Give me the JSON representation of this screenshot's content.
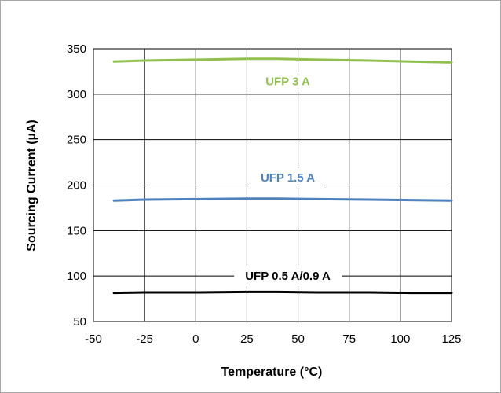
{
  "chart_data": {
    "type": "line",
    "title": "",
    "xlabel": "Temperature (°C)",
    "ylabel": "Sourcing Current (µA)",
    "xlim": [
      -50,
      125
    ],
    "ylim": [
      50,
      350
    ],
    "xticks": [
      -50,
      -25,
      0,
      25,
      50,
      75,
      100,
      125
    ],
    "yticks": [
      50,
      100,
      150,
      200,
      250,
      300,
      350
    ],
    "grid": true,
    "legend": "none (series labels drawn inline)",
    "series": [
      {
        "name": "UFP 3 A",
        "color": "#92c050",
        "label_at": [
          45,
          314
        ],
        "x": [
          -40,
          -25,
          0,
          25,
          40,
          60,
          85,
          105,
          125
        ],
        "y": [
          336,
          337,
          338,
          339,
          339,
          338,
          337,
          336,
          335
        ]
      },
      {
        "name": "UFP 1.5 A",
        "color": "#4f81bd",
        "label_at": [
          45,
          208
        ],
        "x": [
          -40,
          -25,
          0,
          25,
          40,
          60,
          85,
          105,
          125
        ],
        "y": [
          183,
          184,
          184.5,
          185,
          185,
          184.5,
          184,
          183.5,
          183
        ]
      },
      {
        "name": "UFP 0.5 A/0.9 A",
        "color": "#000000",
        "label_at": [
          45,
          100
        ],
        "x": [
          -40,
          -25,
          0,
          25,
          40,
          60,
          85,
          105,
          125
        ],
        "y": [
          81.5,
          82,
          82,
          82.5,
          82.5,
          82,
          82,
          81.5,
          81.5
        ]
      }
    ]
  }
}
